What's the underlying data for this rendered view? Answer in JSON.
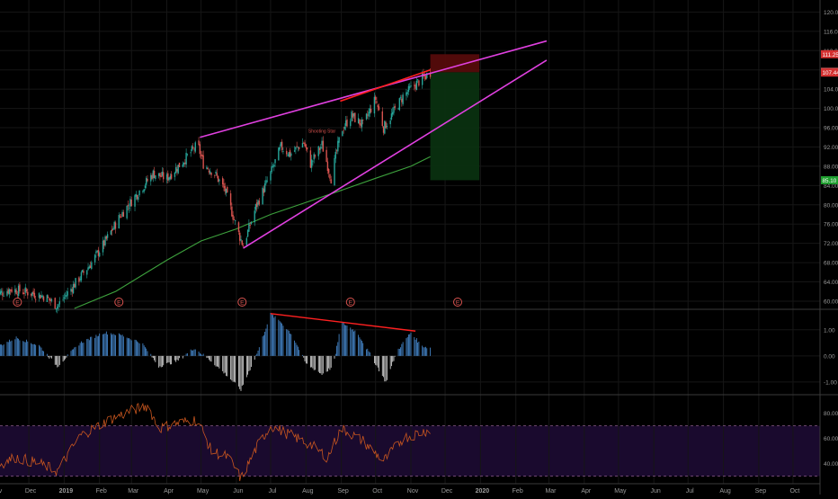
{
  "colors": {
    "background": "#000000",
    "grid": "#161616",
    "axis_text": "#9a9a9a",
    "separator": "#3a3a3a",
    "candle_up": "#26a69a",
    "candle_down": "#d9534f",
    "ma": "#3da13d",
    "wedge": "#e040e0",
    "divergence": "#ff2020",
    "stop_zone": "#5a0b0b",
    "target_zone": "#0a3010",
    "hist_pos": "#4a90d9",
    "hist_neg": "#e0e0e0",
    "rsi_line": "#c8561f",
    "rsi_band": "#1a0a2e",
    "rsi_level": "#8a5a8a"
  },
  "labels": {
    "earnings_marker": "E",
    "pattern_note": "Shooting Star"
  },
  "price_tags": [
    {
      "value": "111.25",
      "bg": "#d32f2f"
    },
    {
      "value": "107.58",
      "bg": "#e06a6a"
    },
    {
      "value": "107.44",
      "bg": "#d32f2f"
    },
    {
      "value": "85.10",
      "bg": "#1e9e2e"
    }
  ],
  "chart_data": [
    {
      "type": "candlestick",
      "x_axis": {
        "tick_labels": [
          "Nov",
          "Dec",
          "2019",
          "Feb",
          "Mar",
          "Apr",
          "May",
          "Jun",
          "Jul",
          "Aug",
          "Sep",
          "Oct",
          "Nov",
          "Dec",
          "2020",
          "Feb",
          "Mar",
          "Apr",
          "May",
          "Jun",
          "Jul",
          "Aug",
          "Sep",
          "Oct"
        ],
        "range": [
          "2018-11-01",
          "2020-10-31"
        ]
      },
      "y_axis": {
        "tick_labels": [
          "60.00",
          "64.00",
          "68.00",
          "72.00",
          "76.00",
          "80.00",
          "84.00",
          "88.00",
          "92.00",
          "96.00",
          "100.00",
          "104.00",
          "108.00",
          "112.00",
          "116.00",
          "120.00"
        ],
        "range": [
          58.5,
          122.5
        ]
      },
      "close_anchors": [
        [
          "2018-11-01",
          61.2
        ],
        [
          "2018-11-15",
          62.5
        ],
        [
          "2018-12-01",
          61.8
        ],
        [
          "2018-12-15",
          61.0
        ],
        [
          "2018-12-26",
          59.0
        ],
        [
          "2019-01-10",
          63.5
        ],
        [
          "2019-01-25",
          68.0
        ],
        [
          "2019-02-05",
          72.0
        ],
        [
          "2019-02-20",
          78.0
        ],
        [
          "2019-03-05",
          82.0
        ],
        [
          "2019-03-20",
          86.5
        ],
        [
          "2019-04-01",
          85.5
        ],
        [
          "2019-04-15",
          89.0
        ],
        [
          "2019-04-28",
          92.5
        ],
        [
          "2019-05-03",
          88.5
        ],
        [
          "2019-05-13",
          86.5
        ],
        [
          "2019-05-22",
          83.0
        ],
        [
          "2019-06-03",
          74.0
        ],
        [
          "2019-06-07",
          71.5
        ],
        [
          "2019-06-18",
          79.5
        ],
        [
          "2019-07-01",
          86.5
        ],
        [
          "2019-07-10",
          92.0
        ],
        [
          "2019-07-18",
          90.5
        ],
        [
          "2019-07-30",
          93.0
        ],
        [
          "2019-08-05",
          88.5
        ],
        [
          "2019-08-15",
          92.5
        ],
        [
          "2019-08-23",
          85.5
        ],
        [
          "2019-09-01",
          95.5
        ],
        [
          "2019-09-10",
          98.5
        ],
        [
          "2019-09-20",
          96.5
        ],
        [
          "2019-10-01",
          102.0
        ],
        [
          "2019-10-08",
          96.0
        ],
        [
          "2019-10-15",
          98.5
        ],
        [
          "2019-10-25",
          102.5
        ],
        [
          "2019-11-05",
          105.0
        ],
        [
          "2019-11-18",
          107.5
        ]
      ],
      "moving_average": [
        [
          "2019-01-10",
          58.5
        ],
        [
          "2019-02-15",
          62.0
        ],
        [
          "2019-04-01",
          68.5
        ],
        [
          "2019-05-01",
          72.5
        ],
        [
          "2019-06-01",
          75.0
        ],
        [
          "2019-07-01",
          78.0
        ],
        [
          "2019-08-01",
          80.5
        ],
        [
          "2019-09-01",
          83.0
        ],
        [
          "2019-10-01",
          85.5
        ],
        [
          "2019-11-01",
          88.0
        ],
        [
          "2019-11-18",
          90.0
        ]
      ],
      "trendlines": [
        {
          "name": "upper",
          "from": [
            "2019-04-30",
            94.0
          ],
          "to": [
            "2020-02-28",
            114.0
          ]
        },
        {
          "name": "lower",
          "from": [
            "2019-06-07",
            71.0
          ],
          "to": [
            "2020-02-28",
            110.0
          ]
        },
        {
          "name": "touch",
          "from": [
            "2019-08-31",
            101.5
          ],
          "to": [
            "2019-11-18",
            108.0
          ]
        }
      ],
      "position": {
        "start": "2019-11-18",
        "end": "2019-12-31",
        "entry": 107.5,
        "stop": 111.25,
        "target": 85.1
      },
      "earnings_markers": [
        "2018-11-21",
        "2019-02-18",
        "2019-06-06",
        "2019-09-09",
        "2019-12-12"
      ],
      "annotation_at": [
        "2019-08-15",
        95.0
      ]
    },
    {
      "type": "histogram",
      "y_axis": {
        "tick_labels": [
          "1.00",
          "0.00",
          "-1.00"
        ],
        "range": [
          -1.45,
          1.75
        ]
      },
      "anchors": [
        [
          "2018-11-01",
          0.3
        ],
        [
          "2018-11-20",
          0.7
        ],
        [
          "2018-12-10",
          0.4
        ],
        [
          "2018-12-26",
          -0.4
        ],
        [
          "2019-01-15",
          0.5
        ],
        [
          "2019-02-05",
          0.9
        ],
        [
          "2019-02-20",
          0.8
        ],
        [
          "2019-03-10",
          0.5
        ],
        [
          "2019-03-25",
          -0.4
        ],
        [
          "2019-04-10",
          -0.2
        ],
        [
          "2019-04-25",
          0.3
        ],
        [
          "2019-05-10",
          -0.2
        ],
        [
          "2019-05-25",
          -0.8
        ],
        [
          "2019-06-05",
          -1.3
        ],
        [
          "2019-06-20",
          0.2
        ],
        [
          "2019-07-01",
          1.6
        ],
        [
          "2019-07-10",
          1.3
        ],
        [
          "2019-07-20",
          0.8
        ],
        [
          "2019-08-01",
          -0.3
        ],
        [
          "2019-08-15",
          -0.7
        ],
        [
          "2019-08-25",
          -0.4
        ],
        [
          "2019-09-01",
          1.3
        ],
        [
          "2019-09-15",
          0.9
        ],
        [
          "2019-10-01",
          -0.3
        ],
        [
          "2019-10-10",
          -1.0
        ],
        [
          "2019-10-20",
          0.2
        ],
        [
          "2019-11-01",
          0.9
        ],
        [
          "2019-11-10",
          0.4
        ],
        [
          "2019-11-18",
          0.3
        ]
      ],
      "divergence_line": {
        "from": [
          "2019-07-01",
          1.62
        ],
        "to": [
          "2019-11-05",
          0.95
        ]
      }
    },
    {
      "type": "line",
      "y_axis": {
        "tick_labels": [
          "80.00",
          "60.00",
          "40.00"
        ],
        "range": [
          24,
          94
        ]
      },
      "levels": [
        70,
        30
      ],
      "anchors": [
        [
          "2018-11-01",
          38
        ],
        [
          "2018-11-20",
          45
        ],
        [
          "2018-12-10",
          40
        ],
        [
          "2018-12-26",
          34
        ],
        [
          "2019-01-15",
          62
        ],
        [
          "2019-02-10",
          75
        ],
        [
          "2019-03-01",
          82
        ],
        [
          "2019-03-15",
          86
        ],
        [
          "2019-03-25",
          68
        ],
        [
          "2019-04-10",
          72
        ],
        [
          "2019-04-28",
          75
        ],
        [
          "2019-05-10",
          50
        ],
        [
          "2019-05-25",
          45
        ],
        [
          "2019-06-05",
          28
        ],
        [
          "2019-06-20",
          55
        ],
        [
          "2019-07-01",
          70
        ],
        [
          "2019-07-20",
          62
        ],
        [
          "2019-08-05",
          55
        ],
        [
          "2019-08-20",
          45
        ],
        [
          "2019-09-01",
          68
        ],
        [
          "2019-09-20",
          58
        ],
        [
          "2019-10-08",
          42
        ],
        [
          "2019-10-25",
          60
        ],
        [
          "2019-11-10",
          65
        ],
        [
          "2019-11-18",
          67
        ]
      ]
    }
  ]
}
